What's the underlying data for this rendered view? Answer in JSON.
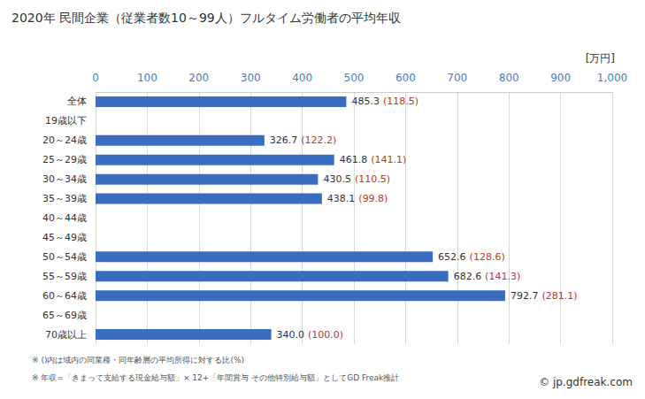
{
  "chart_data": {
    "type": "bar",
    "title": "2020年 民間企業（従業者数10～99人）フルタイム労働者の平均年収",
    "x_label": "[万円]",
    "orientation": "horizontal",
    "categories": [
      "全体",
      "19歳以下",
      "20～24歳",
      "25～29歳",
      "30～34歳",
      "35～39歳",
      "40～44歳",
      "45～49歳",
      "50～54歳",
      "55～59歳",
      "60～64歳",
      "65～69歳",
      "70歳以上"
    ],
    "values": [
      485.3,
      null,
      326.7,
      461.8,
      430.5,
      438.1,
      null,
      null,
      652.6,
      682.6,
      792.7,
      null,
      340.0
    ],
    "value_labels": [
      "485.3",
      null,
      "326.7",
      "461.8",
      "430.5",
      "438.1",
      null,
      null,
      "652.6",
      "682.6",
      "792.7",
      null,
      "340.0"
    ],
    "ratios": [
      118.5,
      null,
      122.2,
      141.1,
      110.5,
      99.8,
      null,
      null,
      128.6,
      141.3,
      281.1,
      null,
      100.0
    ],
    "ratio_labels": [
      "(118.5)",
      null,
      "(122.2)",
      "(141.1)",
      "(110.5)",
      "(99.8)",
      null,
      null,
      "(128.6)",
      "(141.3)",
      "(281.1)",
      null,
      "(100.0)"
    ],
    "color": "#3a6cbf",
    "xlim": [
      0,
      1000
    ],
    "xticks": [
      0,
      100,
      200,
      300,
      400,
      500,
      600,
      700,
      800,
      900,
      1000
    ],
    "grid": true,
    "data_labels": true,
    "notes": [
      "※ ()内は域内の同業種・同年齢層の平均所得に対する比(%)",
      "※ 年収=「きまって支給する現金給与額」× 12+「年間賞与 その他特別給与額」としてGD Freak推計"
    ],
    "source": "© jp.gdfreak.com"
  }
}
